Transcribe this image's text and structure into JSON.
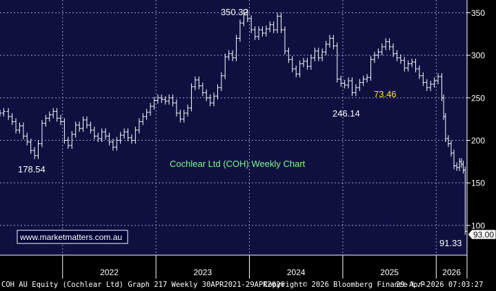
{
  "colors": {
    "plot_bg": "#0f1040",
    "axis_bg": "#000000",
    "grid": "#a0a0c8",
    "price": "#ffffff",
    "title_text": "#7CFC8C",
    "annotation_yellow": "#ffee00",
    "watermark_text": "#ffffff"
  },
  "annotations": {
    "chart_title": "Cochlear Ltd (COH) Weekly Chart",
    "peak_label": "350.32",
    "low_2022_label": "178.54",
    "low_2025_label": "246.14",
    "yellow_label": "73.46",
    "last_low_label": "91.33",
    "last_price_tag": "93.00",
    "watermark": "www.marketmatters.com.au"
  },
  "footer": {
    "left": "COH AU Equity (Cochlear Ltd) Graph 217 Weekly 30APR2021-29APR2026",
    "copyright": "Copyright© 2026 Bloomberg Finance L.P.",
    "timestamp": "29-Apr-2026 07:03:27"
  },
  "chart_data": {
    "type": "line",
    "title": "Cochlear Ltd (COH) Weekly Chart",
    "xlabel": "",
    "ylabel": "",
    "x_ticks": [
      "2022",
      "2023",
      "2024",
      "2025",
      "2026"
    ],
    "y_ticks": [
      100,
      150,
      200,
      250,
      300,
      350
    ],
    "ylim": [
      65,
      365
    ],
    "xlim": [
      2021.33,
      2026.33
    ],
    "grid": true,
    "y_axis_side": "right",
    "last_price": 93.0,
    "series": [
      {
        "name": "",
        "points": [
          [
            2021.33,
            232
          ],
          [
            2021.37,
            234
          ],
          [
            2021.42,
            228
          ],
          [
            2021.46,
            222
          ],
          [
            2021.5,
            212
          ],
          [
            2021.54,
            217
          ],
          [
            2021.58,
            205
          ],
          [
            2021.62,
            198
          ],
          [
            2021.66,
            188
          ],
          [
            2021.7,
            182
          ],
          [
            2021.74,
            196
          ],
          [
            2021.78,
            220
          ],
          [
            2021.82,
            226
          ],
          [
            2021.86,
            230
          ],
          [
            2021.9,
            234
          ],
          [
            2021.94,
            226
          ],
          [
            2021.98,
            222
          ],
          [
            2022.02,
            200
          ],
          [
            2022.06,
            194
          ],
          [
            2022.1,
            207
          ],
          [
            2022.14,
            218
          ],
          [
            2022.18,
            214
          ],
          [
            2022.22,
            224
          ],
          [
            2022.26,
            218
          ],
          [
            2022.3,
            212
          ],
          [
            2022.34,
            205
          ],
          [
            2022.38,
            202
          ],
          [
            2022.42,
            210
          ],
          [
            2022.46,
            205
          ],
          [
            2022.5,
            198
          ],
          [
            2022.54,
            192
          ],
          [
            2022.58,
            200
          ],
          [
            2022.62,
            206
          ],
          [
            2022.66,
            210
          ],
          [
            2022.7,
            203
          ],
          [
            2022.74,
            200
          ],
          [
            2022.78,
            212
          ],
          [
            2022.82,
            222
          ],
          [
            2022.86,
            228
          ],
          [
            2022.9,
            233
          ],
          [
            2022.94,
            240
          ],
          [
            2022.98,
            247
          ],
          [
            2023.02,
            250
          ],
          [
            2023.06,
            248
          ],
          [
            2023.1,
            246
          ],
          [
            2023.14,
            250
          ],
          [
            2023.18,
            244
          ],
          [
            2023.22,
            232
          ],
          [
            2023.26,
            225
          ],
          [
            2023.3,
            232
          ],
          [
            2023.34,
            238
          ],
          [
            2023.38,
            263
          ],
          [
            2023.42,
            271
          ],
          [
            2023.46,
            264
          ],
          [
            2023.5,
            256
          ],
          [
            2023.54,
            250
          ],
          [
            2023.58,
            244
          ],
          [
            2023.62,
            252
          ],
          [
            2023.66,
            262
          ],
          [
            2023.7,
            276
          ],
          [
            2023.74,
            298
          ],
          [
            2023.78,
            302
          ],
          [
            2023.82,
            297
          ],
          [
            2023.86,
            320
          ],
          [
            2023.9,
            338
          ],
          [
            2023.94,
            350
          ],
          [
            2023.98,
            343
          ],
          [
            2024.02,
            330
          ],
          [
            2024.06,
            322
          ],
          [
            2024.1,
            330
          ],
          [
            2024.14,
            326
          ],
          [
            2024.18,
            331
          ],
          [
            2024.22,
            336
          ],
          [
            2024.26,
            330
          ],
          [
            2024.3,
            346
          ],
          [
            2024.34,
            330
          ],
          [
            2024.38,
            305
          ],
          [
            2024.42,
            295
          ],
          [
            2024.46,
            284
          ],
          [
            2024.5,
            278
          ],
          [
            2024.54,
            290
          ],
          [
            2024.58,
            293
          ],
          [
            2024.62,
            287
          ],
          [
            2024.66,
            297
          ],
          [
            2024.7,
            305
          ],
          [
            2024.74,
            297
          ],
          [
            2024.78,
            304
          ],
          [
            2024.82,
            313
          ],
          [
            2024.86,
            320
          ],
          [
            2024.9,
            311
          ],
          [
            2024.94,
            272
          ],
          [
            2024.98,
            267
          ],
          [
            2025.02,
            265
          ],
          [
            2025.06,
            270
          ],
          [
            2025.1,
            256
          ],
          [
            2025.14,
            262
          ],
          [
            2025.18,
            268
          ],
          [
            2025.22,
            272
          ],
          [
            2025.26,
            274
          ],
          [
            2025.3,
            295
          ],
          [
            2025.34,
            300
          ],
          [
            2025.38,
            304
          ],
          [
            2025.42,
            310
          ],
          [
            2025.46,
            316
          ],
          [
            2025.5,
            310
          ],
          [
            2025.54,
            302
          ],
          [
            2025.58,
            297
          ],
          [
            2025.62,
            294
          ],
          [
            2025.66,
            285
          ],
          [
            2025.7,
            290
          ],
          [
            2025.74,
            292
          ],
          [
            2025.78,
            284
          ],
          [
            2025.82,
            276
          ],
          [
            2025.86,
            268
          ],
          [
            2025.9,
            262
          ],
          [
            2025.94,
            266
          ],
          [
            2025.98,
            270
          ],
          [
            2026.02,
            275
          ],
          [
            2026.06,
            250
          ],
          [
            2026.08,
            228
          ],
          [
            2026.1,
            202
          ],
          [
            2026.13,
            196
          ],
          [
            2026.16,
            185
          ],
          [
            2026.19,
            170
          ],
          [
            2026.22,
            168
          ],
          [
            2026.25,
            175
          ],
          [
            2026.27,
            172
          ],
          [
            2026.29,
            165
          ],
          [
            2026.31,
            93
          ]
        ]
      }
    ],
    "annotations": [
      {
        "text": "350.32",
        "x": 2023.94,
        "y": 350.32
      },
      {
        "text": "178.54",
        "x": 2021.7,
        "y": 178.54
      },
      {
        "text": "246.14",
        "x": 2025.1,
        "y": 246.14
      },
      {
        "text": "73.46",
        "x": 2025.3,
        "y": 255
      },
      {
        "text": "91.33",
        "x": 2026.31,
        "y": 91.33
      }
    ]
  }
}
